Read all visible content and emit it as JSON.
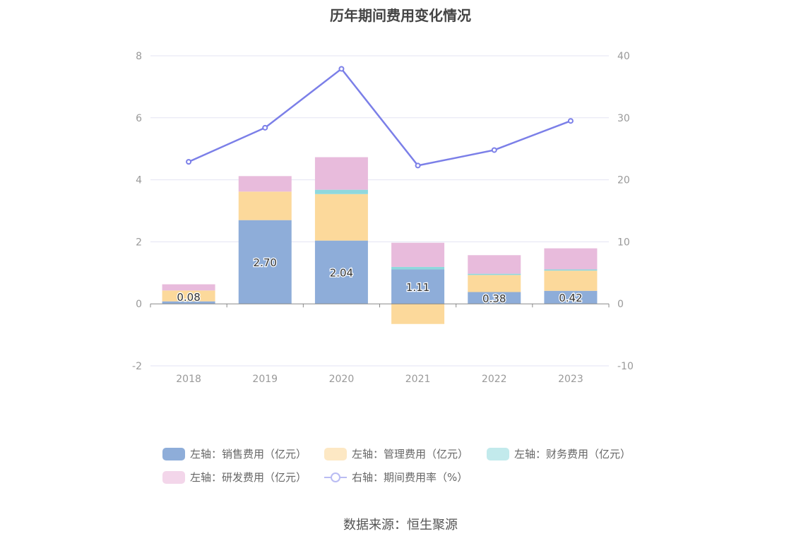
{
  "chart_data": {
    "type": "bar",
    "title": "历年期间费用变化情况",
    "categories": [
      "2018",
      "2019",
      "2020",
      "2021",
      "2022",
      "2023"
    ],
    "stacked": true,
    "y_left": {
      "min": -2,
      "max": 8,
      "ticks": [
        "-2",
        "0",
        "2",
        "4",
        "6",
        "8"
      ]
    },
    "y_right": {
      "min": -10,
      "max": 40,
      "ticks": [
        "-10",
        "0",
        "10",
        "20",
        "30",
        "40"
      ]
    },
    "grid": true,
    "legend_position": "bottom",
    "series": [
      {
        "name": "左轴：销售费用（亿元）",
        "axis": "left",
        "type": "bar",
        "color": "#8eadd9",
        "values": [
          0.08,
          2.7,
          2.04,
          1.11,
          0.38,
          0.42
        ],
        "labels": [
          "0.08",
          "2.70",
          "2.04",
          "1.11",
          "0.38",
          "0.42"
        ]
      },
      {
        "name": "左轴：管理费用（亿元）",
        "axis": "left",
        "type": "bar",
        "color": "#fcd99b",
        "values": [
          0.35,
          0.92,
          1.5,
          -0.65,
          0.55,
          0.65
        ]
      },
      {
        "name": "左轴：财务费用（亿元）",
        "axis": "left",
        "type": "bar",
        "color": "#8fd8dd",
        "values": [
          0.0,
          0.0,
          0.14,
          0.08,
          0.04,
          0.04
        ]
      },
      {
        "name": "左轴：研发费用（亿元）",
        "axis": "left",
        "type": "bar",
        "color": "#e8bbdc",
        "values": [
          0.2,
          0.5,
          1.05,
          0.78,
          0.6,
          0.68
        ]
      },
      {
        "name": "右轴：期间费用率（%）",
        "axis": "right",
        "type": "line",
        "color": "#7b7fe8",
        "values": [
          22.9,
          28.4,
          37.9,
          22.3,
          24.8,
          29.5
        ]
      }
    ]
  },
  "legend_colors": {
    "sales": "#8eadd9",
    "admin": "#fde8c4",
    "finance": "#c2eaec",
    "rd": "#f3d6ea",
    "rate": "#b9bcf3"
  },
  "source": "数据来源：恒生聚源"
}
